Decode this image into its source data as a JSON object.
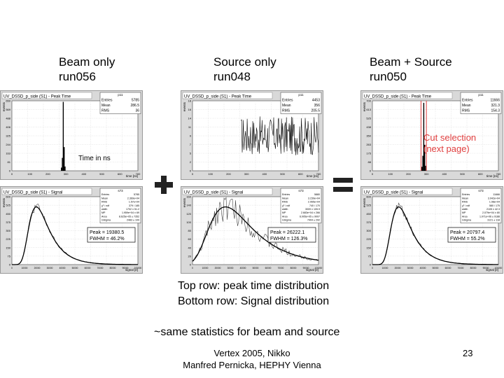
{
  "columns": [
    {
      "title": "Beam only\nrun056"
    },
    {
      "title": "Source only\nrun048"
    },
    {
      "title": "Beam + Source\nrun050"
    }
  ],
  "operators": {
    "plus": "+",
    "equals": "="
  },
  "time_axis_note": "Time in ns",
  "cut_note": "Cut selection\n(next page)",
  "captions": {
    "line1": "Top row: peak time distribution",
    "line2": "Bottom row: Signal distribution",
    "line3": "~same statistics for beam and source"
  },
  "footer": {
    "line1": "Vertex 2005, Nikko",
    "line2": "Manfred Pernicka, HEPHY Vienna"
  },
  "page_number": "23",
  "colors": {
    "panel_bg": "#d9d9d9",
    "cut_line": "#e04040",
    "operator": "#222222"
  },
  "chart_data": [
    {
      "type": "bar",
      "title": "UV_DSSD_p_side (S1) - Peak Time",
      "stats": [
        [
          "Entries",
          "5785"
        ],
        [
          "Mean",
          "286.5"
        ],
        [
          "RMS",
          "36"
        ]
      ],
      "stats_title": "p11",
      "xlabel": "time [ns]",
      "ylabel": "events",
      "xlim": [
        0,
        700
      ],
      "x": [
        275,
        280,
        285,
        290,
        295
      ],
      "values": [
        30,
        120,
        640,
        220,
        40
      ],
      "ylim": [
        0,
        650
      ],
      "grid": true
    },
    {
      "type": "bar",
      "title": "UV_DSSD_p_side (S1) - Peak Time",
      "stats": [
        [
          "Entries",
          "4453"
        ],
        [
          "Mean",
          "356"
        ],
        [
          "RMS",
          "205.5"
        ]
      ],
      "stats_title": "p11",
      "xlabel": "time [ns]",
      "ylabel": "events",
      "xlim": [
        0,
        700
      ],
      "noise_level": 9,
      "ylim": [
        0,
        18
      ],
      "grid": true
    },
    {
      "type": "bar",
      "title": "UV_DSSD_p_side (S1) - Peak Time",
      "stats": [
        [
          "Entries",
          "11666"
        ],
        [
          "Mean",
          "321.3"
        ],
        [
          "RMS",
          "154.3"
        ]
      ],
      "stats_title": "p11",
      "xlabel": "time [ns]",
      "ylabel": "events",
      "xlim": [
        0,
        700
      ],
      "x": [
        275,
        280,
        285,
        290,
        295
      ],
      "values": [
        40,
        150,
        680,
        260,
        50
      ],
      "ylim": [
        0,
        700
      ],
      "cut": [
        270,
        300
      ],
      "grid": true
    },
    {
      "type": "line",
      "title": "UV_DSSD_p_side (S1) - Signal",
      "stats_title": "s73",
      "stats": [
        [
          "Entries",
          "5785"
        ],
        [
          "Mean",
          "2.369e+04"
        ],
        [
          "RMS",
          "1.57e+04"
        ],
        [
          "χ² / ndf",
          "379 / 185"
        ],
        [
          "width",
          "1702 ± 51.2"
        ],
        [
          "MP",
          "1.959e+04 ± 69"
        ],
        [
          "Area",
          "8.625e+05 ± 7352"
        ],
        [
          "GSigma",
          "2483 ± 109"
        ]
      ],
      "peak_label": "Peak = 19380.5",
      "fwhm_label": "FWHM = 46.2%",
      "xlabel": "signal [e]",
      "ylabel": "events",
      "peak": 19380,
      "ylim": [
        0,
        600
      ],
      "grid": true
    },
    {
      "type": "line",
      "title": "UV_DSSD_p_side (S1) - Signal",
      "stats_title": "s73",
      "stats": [
        [
          "Entries",
          "5880"
        ],
        [
          "Mean",
          "3.159e+04"
        ],
        [
          "RMS",
          "2.065e+04"
        ],
        [
          "χ² / ndf",
          "740 / 170"
        ],
        [
          "width",
          "3009 ± 105.9"
        ],
        [
          "MP",
          "2.683e+04 ± 266"
        ],
        [
          "Area",
          "6.005e+05 ± 9007"
        ],
        [
          "GSigma",
          "7404 ± 292"
        ]
      ],
      "peak_label": "Peak = 26222.1",
      "fwhm_label": "FWHM = 126.3%",
      "xlabel": "signal [e]",
      "ylabel": "events",
      "peak": 26222,
      "ylim": [
        0,
        160
      ],
      "grid": true
    },
    {
      "type": "line",
      "title": "UV_DSSD_p_side (S1) - Signal",
      "stats_title": "s73",
      "stats": [
        [
          "Entries",
          "11666"
        ],
        [
          "Mean",
          "3.042e+04"
        ],
        [
          "RMS",
          "1.98e+04"
        ],
        [
          "χ² / ndf",
          "580 / 175"
        ],
        [
          "width",
          "2105 ± 42.3"
        ],
        [
          "MP",
          "2.079e+04 ± 80"
        ],
        [
          "Area",
          "1.071e+06 ± 9188"
        ],
        [
          "GSigma",
          "3121 ± 118"
        ]
      ],
      "peak_label": "Peak = 20797.4",
      "fwhm_label": "FWHM = 55.2%",
      "xlabel": "signal [e]",
      "ylabel": "events",
      "peak": 20797,
      "ylim": [
        0,
        600
      ],
      "grid": true
    }
  ]
}
